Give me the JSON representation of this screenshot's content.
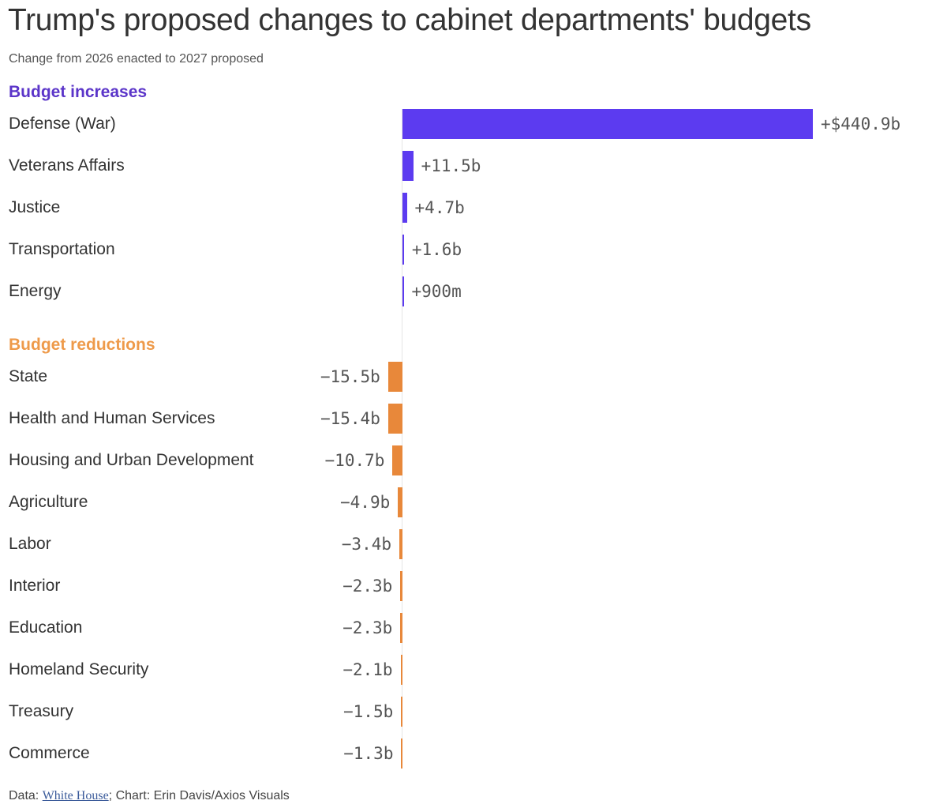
{
  "chart_data": {
    "type": "bar",
    "orientation": "horizontal",
    "title": "Trump's proposed changes to cabinet departments' budgets",
    "subtitle": "Change from 2026 enacted to 2027 proposed",
    "unit": "billions USD",
    "groups": [
      {
        "name": "Budget increases",
        "color": "#5c3bf0",
        "label_color": "#5b35c9",
        "categories": [
          "Defense (War)",
          "Veterans Affairs",
          "Justice",
          "Transportation",
          "Energy"
        ],
        "values": [
          440.9,
          11.5,
          4.7,
          1.6,
          0.9
        ],
        "labels": [
          "+$440.9b",
          "+11.5b",
          "+4.7b",
          "+1.6b",
          "+900m"
        ]
      },
      {
        "name": "Budget reductions",
        "color": "#e8883a",
        "label_color": "#ee9a4a",
        "categories": [
          "State",
          "Health and Human Services",
          "Housing and Urban Development",
          "Agriculture",
          "Labor",
          "Interior",
          "Education",
          "Homeland Security",
          "Treasury",
          "Commerce"
        ],
        "values": [
          -15.5,
          -15.4,
          -10.7,
          -4.9,
          -3.4,
          -2.3,
          -2.3,
          -2.1,
          -1.5,
          -1.3
        ],
        "labels": [
          "−15.5b",
          "−15.4b",
          "−10.7b",
          "−4.9b",
          "−3.4b",
          "−2.3b",
          "−2.3b",
          "−2.1b",
          "−1.5b",
          "−1.3b"
        ]
      }
    ],
    "xlim": [
      -15.5,
      440.9
    ],
    "grid": false,
    "legend": "none"
  },
  "source": {
    "prefix": "Data: ",
    "link": "White House",
    "suffix": "; Chart: Erin Davis/Axios Visuals"
  }
}
